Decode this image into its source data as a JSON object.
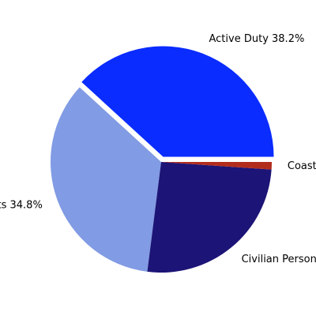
{
  "chart_data": {
    "type": "pie",
    "title": "",
    "slices": [
      {
        "label": "Active Duty",
        "value": 38.2,
        "color": "#0a2cff",
        "pct_label": "38.2%",
        "exploded": true
      },
      {
        "label": "Reserve Components",
        "value": 34.8,
        "color": "#819be4",
        "pct_label": "34.8%",
        "exploded": false
      },
      {
        "label": "Civilian Personnel",
        "value": 25.9,
        "color": "#1c1476",
        "pct_label": "",
        "exploded": false
      },
      {
        "label": "Coast Guard",
        "value": 1.1,
        "color": "#b22c1c",
        "pct_label": "",
        "exploded": false
      }
    ],
    "start_angle_deg": 0,
    "direction": "counterclockwise",
    "legend": "none"
  }
}
